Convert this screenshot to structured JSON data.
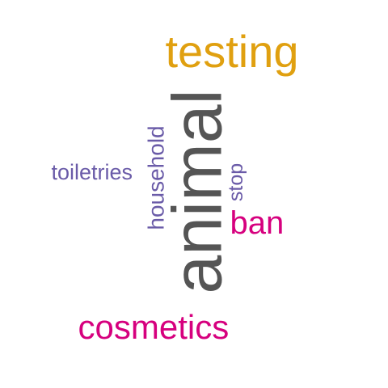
{
  "word_cloud": {
    "words": [
      {
        "text": "animal",
        "color": "#555555",
        "rotated": true
      },
      {
        "text": "testing",
        "color": "#E0A010",
        "rotated": false
      },
      {
        "text": "cosmetics",
        "color": "#D6007E",
        "rotated": false
      },
      {
        "text": "ban",
        "color": "#D6007E",
        "rotated": false
      },
      {
        "text": "household",
        "color": "#6A5BA8",
        "rotated": true
      },
      {
        "text": "toiletries",
        "color": "#6A5BA8",
        "rotated": false
      },
      {
        "text": "stop",
        "color": "#6A5BA8",
        "rotated": true
      }
    ]
  }
}
